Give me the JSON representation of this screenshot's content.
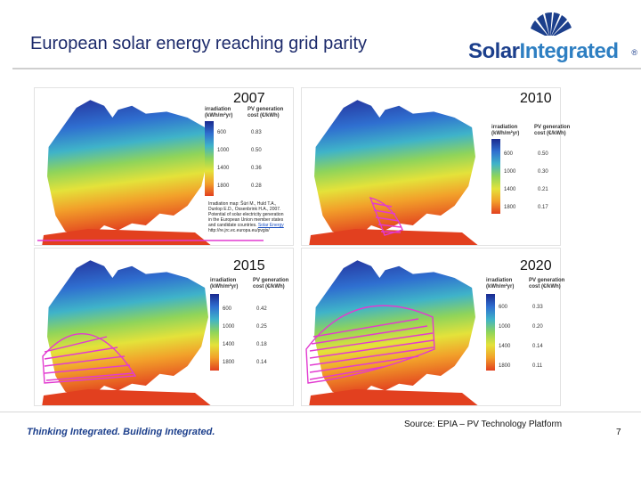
{
  "slide": {
    "title": "European solar energy reaching grid parity",
    "source": "Source: EPIA – PV Technology Platform",
    "tagline": "Thinking Integrated. Building Integrated.",
    "page_number": "7"
  },
  "logo": {
    "part1": "Solar",
    "part2": "Integrated",
    "registered": "®"
  },
  "colors": {
    "title": "#1c2a6b",
    "logo_dark": "#1c3f8c",
    "logo_light": "#2e7fc2",
    "parity_overlay": "#e23ad0"
  },
  "panels": [
    {
      "year": "2007",
      "legend": {
        "col1": "irradiation (kWh/m²yr)",
        "col2": "PV generation cost (€/kWh)",
        "rows": [
          [
            "600",
            "0.83"
          ],
          [
            "1000",
            "0.50"
          ],
          [
            "1400",
            "0.36"
          ],
          [
            "1800",
            "0.28"
          ]
        ]
      },
      "citation": {
        "text": "Irradiation map: Šúri M., Huld T.A., Dunlop E.D., Ossenbrink H.A., 2007. Potential of solar electricity generation in the European Union member states and candidate countries.",
        "link": "Solar Energy",
        "url": "http://re.jrc.ec.europa.eu/pvgis/"
      }
    },
    {
      "year": "2010",
      "legend": {
        "col1": "irradiation (kWh/m²yr)",
        "col2": "PV generation cost (€/kWh)",
        "rows": [
          [
            "600",
            "0.50"
          ],
          [
            "1000",
            "0.30"
          ],
          [
            "1400",
            "0.21"
          ],
          [
            "1800",
            "0.17"
          ]
        ]
      }
    },
    {
      "year": "2015",
      "legend": {
        "col1": "irradiation (kWh/m²yr)",
        "col2": "PV generation cost (€/kWh)",
        "rows": [
          [
            "600",
            "0.42"
          ],
          [
            "1000",
            "0.25"
          ],
          [
            "1400",
            "0.18"
          ],
          [
            "1800",
            "0.14"
          ]
        ]
      }
    },
    {
      "year": "2020",
      "legend": {
        "col1": "irradiation (kWh/m²yr)",
        "col2": "PV generation cost (€/kWh)",
        "rows": [
          [
            "600",
            "0.33"
          ],
          [
            "1000",
            "0.20"
          ],
          [
            "1400",
            "0.14"
          ],
          [
            "1800",
            "0.11"
          ]
        ]
      }
    }
  ]
}
